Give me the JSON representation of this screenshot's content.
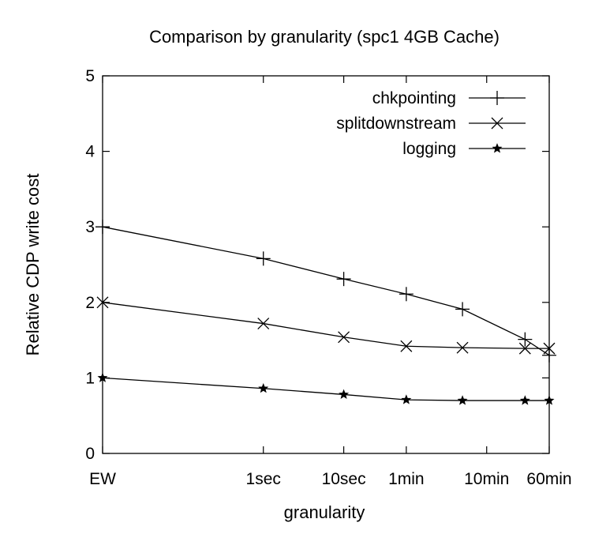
{
  "chart_data": {
    "type": "line",
    "title": "Comparison by granularity (spc1 4GB Cache)",
    "xlabel": "granularity",
    "ylabel": "Relative CDP write cost",
    "ylim": [
      0,
      5
    ],
    "yticks": [
      0,
      1,
      2,
      3,
      4,
      5
    ],
    "x_scale": "log",
    "x_axis_unit": "seconds",
    "xticks": [
      {
        "label": "EW",
        "value": 0.01
      },
      {
        "label": "1sec",
        "value": 1
      },
      {
        "label": "10sec",
        "value": 10
      },
      {
        "label": "1min",
        "value": 60
      },
      {
        "label": "10min",
        "value": 600
      },
      {
        "label": "60min",
        "value": 3600
      }
    ],
    "xlim": [
      0.01,
      3600
    ],
    "grid": false,
    "legend_position": "top-right",
    "series": [
      {
        "name": "chkpointing",
        "marker": "plus",
        "x": [
          0.01,
          1,
          10,
          60,
          300,
          1800,
          3600
        ],
        "y": [
          3.0,
          2.58,
          2.31,
          2.11,
          1.91,
          1.51,
          1.3
        ]
      },
      {
        "name": "splitdownstream",
        "marker": "cross",
        "x": [
          0.01,
          1,
          10,
          60,
          300,
          1800,
          3600
        ],
        "y": [
          2.0,
          1.72,
          1.54,
          1.42,
          1.4,
          1.39,
          1.39
        ]
      },
      {
        "name": "logging",
        "marker": "star",
        "x": [
          0.01,
          1,
          10,
          60,
          300,
          1800,
          3600
        ],
        "y": [
          1.0,
          0.86,
          0.78,
          0.71,
          0.7,
          0.7,
          0.7
        ]
      }
    ]
  }
}
